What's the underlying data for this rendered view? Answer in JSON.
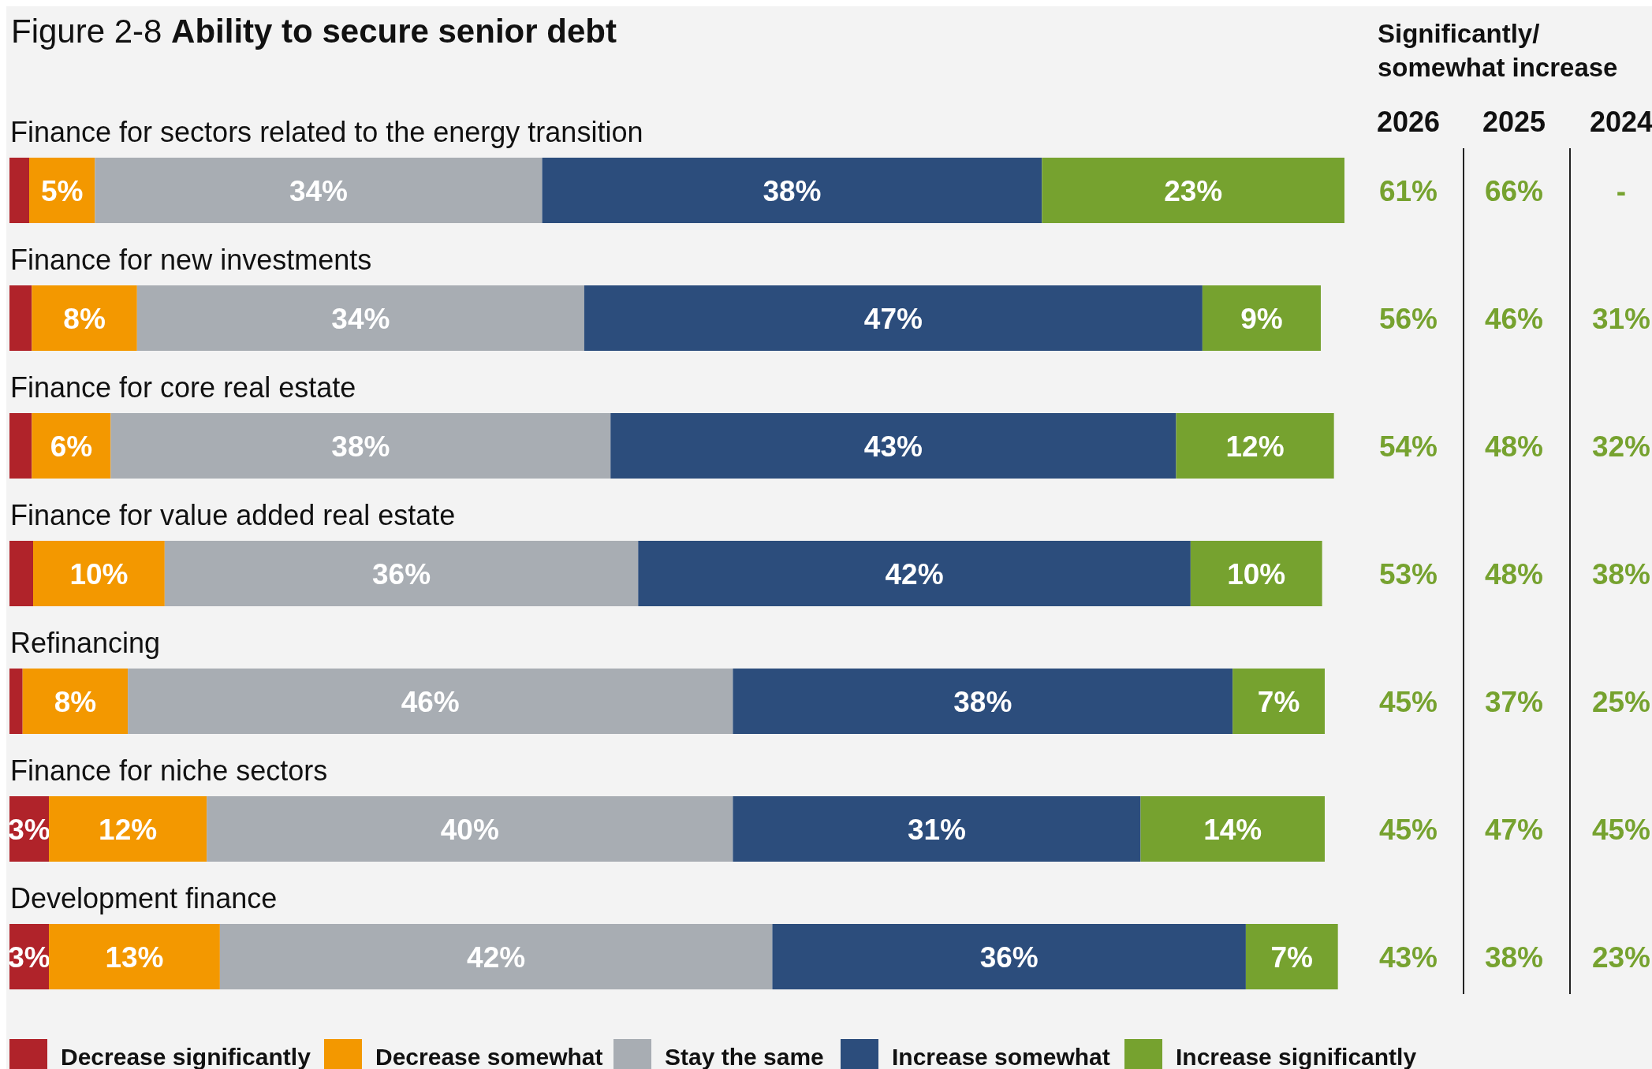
{
  "chart_data": [
    {
      "type": "bar",
      "orientation": "horizontal",
      "stacked": true,
      "title": "Figure 2-8 Ability to secure senior debt",
      "categories": [
        "Finance for sectors related to the energy transition",
        "Finance for new investments",
        "Finance for core real estate",
        "Finance for value added real estate",
        "Refinancing",
        "Finance for niche sectors",
        "Development finance"
      ],
      "series": [
        {
          "name": "Decrease significantly",
          "color": "#b0232a",
          "values": [
            1.5,
            1.7,
            1.7,
            1.8,
            1,
            3,
            3
          ],
          "value_labels": [
            null,
            null,
            null,
            null,
            null,
            "3%",
            "3%"
          ]
        },
        {
          "name": "Decrease somewhat",
          "color": "#f39800",
          "values": [
            5,
            8,
            6,
            10,
            8,
            12,
            13
          ],
          "value_labels": [
            "5%",
            "8%",
            "6%",
            "10%",
            "8%",
            "12%",
            "13%"
          ]
        },
        {
          "name": "Stay the same",
          "color": "#a8adb3",
          "values": [
            34,
            34,
            38,
            36,
            46,
            40,
            42
          ],
          "value_labels": [
            "34%",
            "34%",
            "38%",
            "36%",
            "46%",
            "40%",
            "42%"
          ]
        },
        {
          "name": "Increase somewhat",
          "color": "#2c4d7c",
          "values": [
            38,
            47,
            43,
            42,
            38,
            31,
            36
          ],
          "value_labels": [
            "38%",
            "47%",
            "43%",
            "42%",
            "38%",
            "31%",
            "36%"
          ]
        },
        {
          "name": "Increase significantly",
          "color": "#76a22f",
          "values": [
            23,
            9,
            12,
            10,
            7,
            14,
            7
          ],
          "value_labels": [
            "23%",
            "9%",
            "12%",
            "10%",
            "7%",
            "14%",
            "7%"
          ]
        }
      ],
      "legend": "bottom"
    },
    {
      "type": "other",
      "title": "Significantly/ somewhat increase",
      "categories": [
        "2026",
        "2025",
        "2024"
      ],
      "color": "#76a22f",
      "cell_labels": [
        [
          "61%",
          "66%",
          "-"
        ],
        [
          "56%",
          "46%",
          "31%"
        ],
        [
          "54%",
          "48%",
          "32%"
        ],
        [
          "53%",
          "48%",
          "38%"
        ],
        [
          "45%",
          "37%",
          "25%"
        ],
        [
          "45%",
          "47%",
          "45%"
        ],
        [
          "43%",
          "38%",
          "23%"
        ]
      ]
    }
  ]
}
